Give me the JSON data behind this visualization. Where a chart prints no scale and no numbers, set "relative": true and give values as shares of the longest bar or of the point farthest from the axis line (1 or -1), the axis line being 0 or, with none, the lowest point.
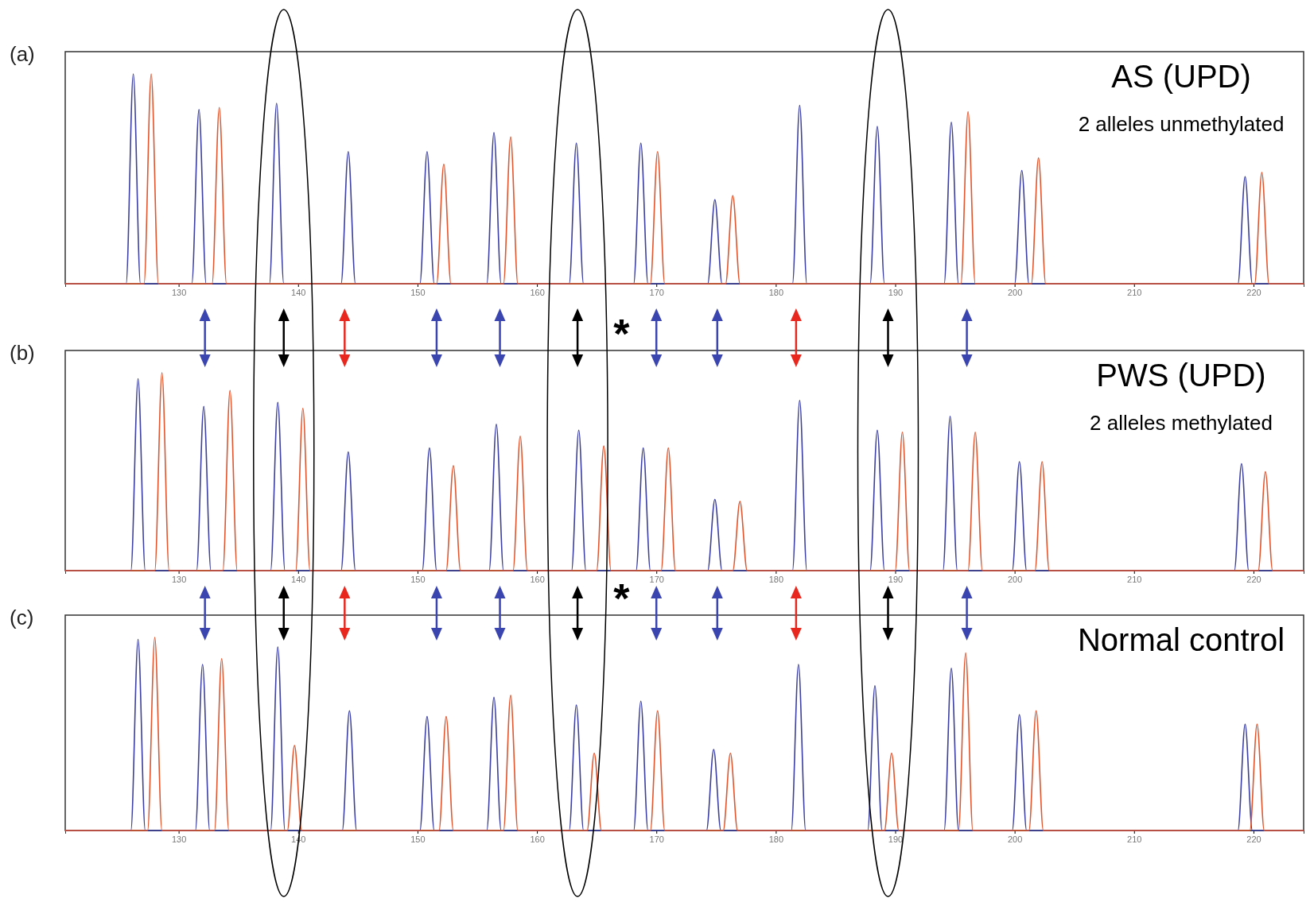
{
  "chart_data": [
    {
      "type": "line",
      "title": "AS (UPD)",
      "subtitle": "2 alleles unmethylated",
      "annotations": [
        "(a)"
      ],
      "relative": true,
      "grid": false,
      "xlim": [
        120.5,
        224.2
      ],
      "xticks": [
        130,
        140,
        150,
        160,
        170,
        180,
        190,
        200,
        210,
        220
      ],
      "series": [
        {
          "color": "#3b3fa0",
          "x": [
            120.5,
            125.6,
            126.2,
            126.8,
            131.1,
            131.7,
            132.3,
            137.6,
            138.2,
            138.8,
            143.6,
            144.2,
            144.8,
            150.2,
            150.8,
            151.4,
            155.8,
            156.4,
            157.0,
            162.7,
            163.3,
            163.9,
            168.1,
            168.7,
            169.3,
            174.3,
            174.9,
            175.5,
            181.4,
            182.0,
            182.6,
            187.9,
            188.5,
            189.1,
            194.1,
            194.7,
            195.3,
            200.0,
            200.6,
            201.2,
            218.7,
            219.3,
            219.9,
            224.2
          ],
          "values": [
            0,
            0,
            1,
            0,
            0,
            0.83,
            0,
            0,
            0.86,
            0,
            0,
            0.63,
            0,
            0,
            0.63,
            0,
            0,
            0.72,
            0,
            0,
            0.67,
            0,
            0,
            0.67,
            0,
            0,
            0.4,
            0,
            0,
            0.85,
            0,
            0,
            0.75,
            0,
            0,
            0.77,
            0,
            0,
            0.54,
            0,
            0,
            0.51,
            0,
            0
          ]
        },
        {
          "color": "#e0552e",
          "x": [
            120.5,
            127.1,
            127.7,
            128.3,
            132.8,
            133.4,
            134.0,
            151.6,
            152.2,
            152.8,
            157.2,
            157.8,
            158.4,
            169.5,
            170.1,
            170.7,
            175.8,
            176.4,
            177.0,
            195.5,
            196.1,
            196.7,
            201.4,
            202.0,
            202.6,
            220.1,
            220.7,
            221.3,
            224.2
          ],
          "values": [
            0,
            0,
            1,
            0,
            0,
            0.84,
            0,
            0,
            0.57,
            0,
            0,
            0.7,
            0,
            0,
            0.63,
            0,
            0,
            0.42,
            0,
            0,
            0.82,
            0,
            0,
            0.6,
            0,
            0,
            0.53,
            0,
            0
          ]
        }
      ]
    },
    {
      "type": "line",
      "title": "PWS (UPD)",
      "subtitle": "2 alleles methylated",
      "annotations": [
        "(b)",
        "*"
      ],
      "relative": true,
      "grid": false,
      "xlim": [
        120.5,
        224.2
      ],
      "xticks": [
        130,
        140,
        150,
        160,
        170,
        180,
        190,
        200,
        210,
        220
      ],
      "series": [
        {
          "color": "#3b3fa0",
          "x": [
            120.5,
            126.0,
            126.6,
            127.2,
            131.5,
            132.1,
            132.7,
            137.7,
            138.3,
            138.9,
            143.6,
            144.2,
            144.8,
            150.4,
            151.0,
            151.6,
            156.0,
            156.6,
            157.2,
            162.9,
            163.5,
            164.1,
            168.3,
            168.9,
            169.5,
            174.3,
            174.9,
            175.5,
            181.4,
            182.0,
            182.6,
            187.9,
            188.5,
            189.1,
            194.0,
            194.6,
            195.2,
            199.8,
            200.4,
            201.0,
            218.4,
            219.0,
            219.6,
            224.2
          ],
          "values": [
            0,
            0,
            0.97,
            0,
            0,
            0.83,
            0,
            0,
            0.85,
            0,
            0,
            0.6,
            0,
            0,
            0.62,
            0,
            0,
            0.74,
            0,
            0,
            0.71,
            0,
            0,
            0.62,
            0,
            0,
            0.36,
            0,
            0,
            0.86,
            0,
            0,
            0.71,
            0,
            0,
            0.78,
            0,
            0,
            0.55,
            0,
            0,
            0.54,
            0,
            0
          ]
        },
        {
          "color": "#e0552e",
          "x": [
            120.5,
            128.0,
            128.6,
            129.2,
            133.7,
            134.3,
            134.9,
            139.8,
            140.4,
            141.0,
            152.4,
            153.0,
            153.6,
            158.0,
            158.6,
            159.2,
            165.0,
            165.6,
            166.2,
            170.4,
            171.0,
            171.6,
            176.4,
            177.0,
            177.6,
            190.0,
            190.6,
            191.2,
            196.1,
            196.7,
            197.3,
            201.7,
            202.3,
            202.9,
            220.4,
            221.0,
            221.6,
            224.2
          ],
          "values": [
            0,
            0,
            1,
            0,
            0,
            0.91,
            0,
            0,
            0.82,
            0,
            0,
            0.53,
            0,
            0,
            0.68,
            0,
            0,
            0.63,
            0,
            0,
            0.62,
            0,
            0,
            0.35,
            0,
            0,
            0.7,
            0,
            0,
            0.7,
            0,
            0,
            0.55,
            0,
            0,
            0.5,
            0,
            0
          ]
        }
      ]
    },
    {
      "type": "line",
      "title": "Normal control",
      "annotations": [
        "(c)",
        "*"
      ],
      "relative": true,
      "grid": false,
      "xlim": [
        120.5,
        224.2
      ],
      "xticks": [
        130,
        140,
        150,
        160,
        170,
        180,
        190,
        200,
        210,
        220
      ],
      "series": [
        {
          "color": "#3b3fa0",
          "x": [
            120.5,
            126.0,
            126.6,
            127.2,
            131.4,
            132.0,
            132.6,
            137.7,
            138.3,
            138.9,
            143.7,
            144.3,
            144.9,
            150.2,
            150.8,
            151.4,
            155.8,
            156.4,
            157.0,
            162.7,
            163.3,
            163.9,
            168.1,
            168.7,
            169.3,
            174.2,
            174.8,
            175.4,
            181.3,
            181.9,
            182.5,
            187.7,
            188.3,
            188.9,
            194.1,
            194.7,
            195.3,
            199.8,
            200.4,
            201.0,
            218.7,
            219.3,
            219.9,
            224.2
          ],
          "values": [
            0,
            0,
            0.99,
            0,
            0,
            0.86,
            0,
            0,
            0.95,
            0,
            0,
            0.62,
            0,
            0,
            0.59,
            0,
            0,
            0.69,
            0,
            0,
            0.65,
            0,
            0,
            0.67,
            0,
            0,
            0.42,
            0,
            0,
            0.86,
            0,
            0,
            0.75,
            0,
            0,
            0.84,
            0,
            0,
            0.6,
            0,
            0,
            0.55,
            0,
            0
          ]
        },
        {
          "color": "#e0552e",
          "x": [
            120.5,
            127.4,
            128.0,
            128.6,
            133.0,
            133.6,
            134.2,
            139.1,
            139.7,
            140.3,
            151.8,
            152.4,
            153.0,
            157.2,
            157.8,
            158.4,
            164.2,
            164.8,
            165.4,
            169.5,
            170.1,
            170.7,
            175.6,
            176.2,
            176.8,
            189.1,
            189.7,
            190.3,
            195.3,
            195.9,
            196.5,
            201.2,
            201.8,
            202.4,
            219.7,
            220.3,
            220.9,
            224.2
          ],
          "values": [
            0,
            0,
            1,
            0,
            0,
            0.89,
            0,
            0,
            0.44,
            0,
            0,
            0.59,
            0,
            0,
            0.7,
            0,
            0,
            0.4,
            0,
            0,
            0.62,
            0,
            0,
            0.4,
            0,
            0,
            0.4,
            0,
            0,
            0.92,
            0,
            0,
            0.62,
            0,
            0,
            0.55,
            0,
            0
          ]
        }
      ]
    }
  ]
}
